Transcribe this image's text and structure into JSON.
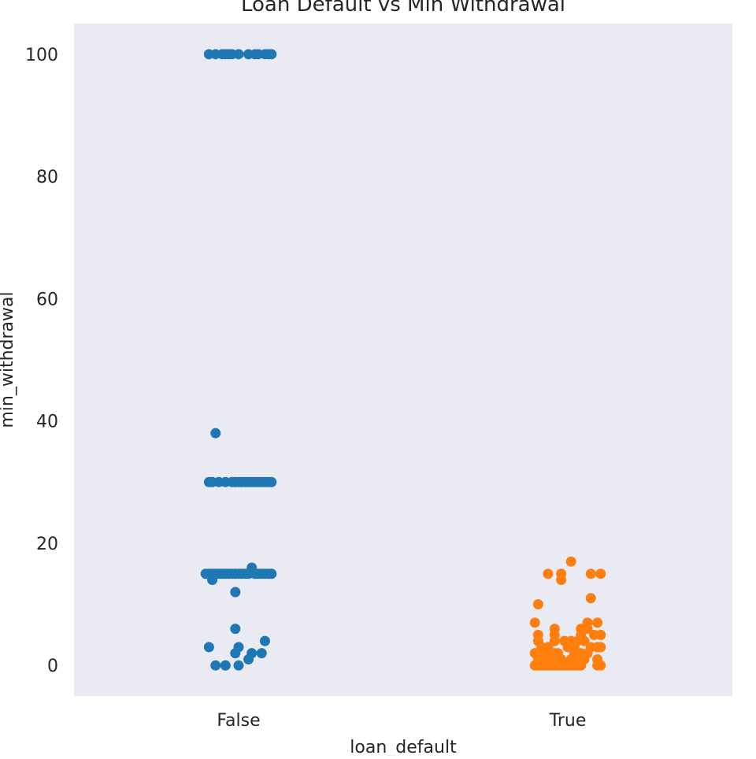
{
  "chart_data": {
    "type": "scatter",
    "title": "Loan Default vs Min Withdrawal",
    "xlabel": "loan_default",
    "ylabel": "min_withdrawal",
    "categories": [
      "False",
      "True"
    ],
    "ylim": [
      -5,
      105
    ],
    "yticks": [
      0,
      20,
      40,
      60,
      80,
      100
    ],
    "grid": false,
    "legend": "none",
    "background_color": "#eaeaf2",
    "series": [
      {
        "category": "False",
        "color": "#1f77b4",
        "points": [
          {
            "x": -0.09,
            "y": 100
          },
          {
            "x": -0.07,
            "y": 100
          },
          {
            "x": -0.05,
            "y": 100
          },
          {
            "x": -0.04,
            "y": 100
          },
          {
            "x": -0.03,
            "y": 100
          },
          {
            "x": -0.02,
            "y": 100
          },
          {
            "x": 0.0,
            "y": 100
          },
          {
            "x": 0.03,
            "y": 100
          },
          {
            "x": 0.05,
            "y": 100
          },
          {
            "x": 0.06,
            "y": 100
          },
          {
            "x": 0.08,
            "y": 100
          },
          {
            "x": 0.09,
            "y": 100
          },
          {
            "x": 0.1,
            "y": 100
          },
          {
            "x": -0.07,
            "y": 38
          },
          {
            "x": -0.09,
            "y": 30
          },
          {
            "x": -0.08,
            "y": 30
          },
          {
            "x": -0.06,
            "y": 30
          },
          {
            "x": -0.04,
            "y": 30
          },
          {
            "x": -0.02,
            "y": 30
          },
          {
            "x": -0.01,
            "y": 30
          },
          {
            "x": 0.0,
            "y": 30
          },
          {
            "x": 0.01,
            "y": 30
          },
          {
            "x": 0.02,
            "y": 30
          },
          {
            "x": 0.03,
            "y": 30
          },
          {
            "x": 0.04,
            "y": 30
          },
          {
            "x": 0.05,
            "y": 30
          },
          {
            "x": 0.06,
            "y": 30
          },
          {
            "x": 0.07,
            "y": 30
          },
          {
            "x": 0.08,
            "y": 30
          },
          {
            "x": 0.09,
            "y": 30
          },
          {
            "x": 0.1,
            "y": 30
          },
          {
            "x": 0.04,
            "y": 16
          },
          {
            "x": -0.1,
            "y": 15
          },
          {
            "x": -0.09,
            "y": 15
          },
          {
            "x": -0.08,
            "y": 15
          },
          {
            "x": -0.07,
            "y": 15
          },
          {
            "x": -0.06,
            "y": 15
          },
          {
            "x": -0.05,
            "y": 15
          },
          {
            "x": -0.04,
            "y": 15
          },
          {
            "x": -0.03,
            "y": 15
          },
          {
            "x": -0.02,
            "y": 15
          },
          {
            "x": -0.01,
            "y": 15
          },
          {
            "x": 0.0,
            "y": 15
          },
          {
            "x": 0.01,
            "y": 15
          },
          {
            "x": 0.02,
            "y": 15
          },
          {
            "x": 0.03,
            "y": 15
          },
          {
            "x": 0.05,
            "y": 15
          },
          {
            "x": 0.06,
            "y": 15
          },
          {
            "x": 0.07,
            "y": 15
          },
          {
            "x": 0.08,
            "y": 15
          },
          {
            "x": 0.09,
            "y": 15
          },
          {
            "x": 0.1,
            "y": 15
          },
          {
            "x": -0.08,
            "y": 14
          },
          {
            "x": -0.01,
            "y": 12
          },
          {
            "x": -0.01,
            "y": 6
          },
          {
            "x": 0.08,
            "y": 4
          },
          {
            "x": -0.09,
            "y": 3
          },
          {
            "x": 0.0,
            "y": 3
          },
          {
            "x": -0.01,
            "y": 2
          },
          {
            "x": 0.04,
            "y": 2
          },
          {
            "x": 0.07,
            "y": 2
          },
          {
            "x": 0.03,
            "y": 1
          },
          {
            "x": -0.07,
            "y": 0
          },
          {
            "x": -0.04,
            "y": 0
          },
          {
            "x": -0.04,
            "y": 0
          },
          {
            "x": 0.0,
            "y": 0
          }
        ]
      },
      {
        "category": "True",
        "color": "#ff7f0e",
        "points": [
          {
            "x": 0.01,
            "y": 17
          },
          {
            "x": -0.06,
            "y": 15
          },
          {
            "x": -0.02,
            "y": 15
          },
          {
            "x": 0.07,
            "y": 15
          },
          {
            "x": 0.1,
            "y": 15
          },
          {
            "x": -0.02,
            "y": 14
          },
          {
            "x": 0.07,
            "y": 11
          },
          {
            "x": -0.09,
            "y": 10
          },
          {
            "x": -0.1,
            "y": 7
          },
          {
            "x": 0.06,
            "y": 7
          },
          {
            "x": 0.09,
            "y": 7
          },
          {
            "x": 0.04,
            "y": 6
          },
          {
            "x": -0.04,
            "y": 6
          },
          {
            "x": 0.06,
            "y": 6
          },
          {
            "x": -0.09,
            "y": 5
          },
          {
            "x": -0.04,
            "y": 5
          },
          {
            "x": 0.04,
            "y": 5
          },
          {
            "x": 0.08,
            "y": 5
          },
          {
            "x": 0.1,
            "y": 5
          },
          {
            "x": -0.09,
            "y": 4
          },
          {
            "x": -0.04,
            "y": 4
          },
          {
            "x": -0.01,
            "y": 4
          },
          {
            "x": 0.01,
            "y": 4
          },
          {
            "x": 0.03,
            "y": 4
          },
          {
            "x": 0.05,
            "y": 4
          },
          {
            "x": -0.08,
            "y": 3
          },
          {
            "x": -0.06,
            "y": 3
          },
          {
            "x": 0.0,
            "y": 3
          },
          {
            "x": 0.02,
            "y": 3
          },
          {
            "x": 0.07,
            "y": 3
          },
          {
            "x": 0.09,
            "y": 3
          },
          {
            "x": 0.1,
            "y": 3
          },
          {
            "x": -0.1,
            "y": 2
          },
          {
            "x": -0.08,
            "y": 2
          },
          {
            "x": -0.06,
            "y": 2
          },
          {
            "x": -0.04,
            "y": 2
          },
          {
            "x": -0.03,
            "y": 2
          },
          {
            "x": 0.02,
            "y": 2
          },
          {
            "x": 0.04,
            "y": 2
          },
          {
            "x": 0.06,
            "y": 2
          },
          {
            "x": -0.09,
            "y": 1
          },
          {
            "x": -0.07,
            "y": 1
          },
          {
            "x": -0.05,
            "y": 1
          },
          {
            "x": -0.02,
            "y": 1
          },
          {
            "x": 0.01,
            "y": 1
          },
          {
            "x": 0.03,
            "y": 1
          },
          {
            "x": 0.05,
            "y": 1
          },
          {
            "x": 0.09,
            "y": 1
          },
          {
            "x": -0.1,
            "y": 0
          },
          {
            "x": -0.09,
            "y": 0
          },
          {
            "x": -0.08,
            "y": 0
          },
          {
            "x": -0.07,
            "y": 0
          },
          {
            "x": -0.06,
            "y": 0
          },
          {
            "x": -0.05,
            "y": 0
          },
          {
            "x": -0.04,
            "y": 0
          },
          {
            "x": -0.03,
            "y": 0
          },
          {
            "x": -0.02,
            "y": 0
          },
          {
            "x": -0.01,
            "y": 0
          },
          {
            "x": 0.0,
            "y": 0
          },
          {
            "x": 0.01,
            "y": 0
          },
          {
            "x": 0.02,
            "y": 0
          },
          {
            "x": 0.03,
            "y": 0
          },
          {
            "x": 0.04,
            "y": 0
          },
          {
            "x": 0.09,
            "y": 0
          },
          {
            "x": 0.1,
            "y": 0
          }
        ]
      }
    ]
  }
}
